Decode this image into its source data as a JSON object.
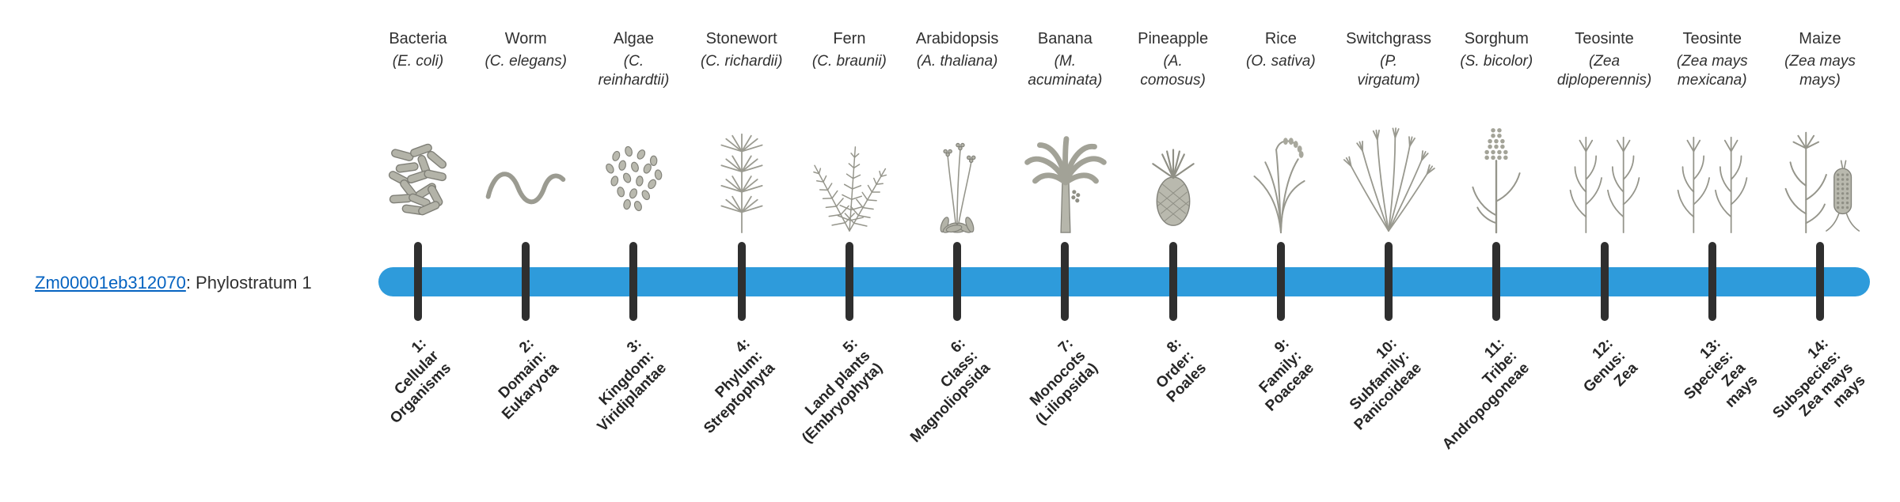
{
  "gene": {
    "id": "Zm00001eb312070",
    "phylostratum": ": Phylostratum 1"
  },
  "colors": {
    "bar": "#2E9BDB",
    "tick": "#2F2F2F",
    "link": "#0563C1",
    "text": "#303030",
    "label": "#262626"
  },
  "columns": [
    {
      "name": "Bacteria",
      "latin": "(E. coli)",
      "icon": "bacteria-icon",
      "stratum": [
        "1:",
        "Cellular",
        "Organisms"
      ]
    },
    {
      "name": "Worm",
      "latin": "(C. elegans)",
      "icon": "worm-icon",
      "stratum": [
        "2:",
        "Domain:",
        "Eukaryota"
      ]
    },
    {
      "name": "Algae",
      "latin": [
        "(C.",
        "reinhardtii)"
      ],
      "icon": "algae-icon",
      "stratum": [
        "3:",
        "Kingdom:",
        "Viridiplantae"
      ]
    },
    {
      "name": "Stonewort",
      "latin": "(C. richardii)",
      "icon": "stonewort-icon",
      "stratum": [
        "4:",
        "Phylum:",
        "Streptophyta"
      ]
    },
    {
      "name": "Fern",
      "latin": "(C. braunii)",
      "icon": "fern-icon",
      "stratum": [
        "5:",
        "Land plants",
        "(Embryophyta)"
      ]
    },
    {
      "name": "Arabidopsis",
      "latin": "(A. thaliana)",
      "icon": "arabidopsis-icon",
      "stratum": [
        "6:",
        "Class:",
        "Magnoliopsida"
      ]
    },
    {
      "name": "Banana",
      "latin": [
        "(M.",
        "acuminata)"
      ],
      "icon": "banana-plant-icon",
      "stratum": [
        "7:",
        "Monocots",
        "(Liliopsida)"
      ]
    },
    {
      "name": "Pineapple",
      "latin": [
        "(A.",
        "comosus)"
      ],
      "icon": "pineapple-icon",
      "stratum": [
        "8:",
        "Order:",
        "Poales"
      ]
    },
    {
      "name": "Rice",
      "latin": "(O. sativa)",
      "icon": "rice-plant-icon",
      "stratum": [
        "9:",
        "Family:",
        "Poaceae"
      ]
    },
    {
      "name": "Switchgrass",
      "latin": [
        "(P.",
        "virgatum)"
      ],
      "icon": "switchgrass-icon",
      "stratum": [
        "10:",
        "Subfamily:",
        "Panicoideae"
      ]
    },
    {
      "name": "Sorghum",
      "latin": "(S. bicolor)",
      "icon": "sorghum-icon",
      "stratum": [
        "11:",
        "Tribe:",
        "Andropogoneae"
      ]
    },
    {
      "name": "Teosinte",
      "latin": [
        "(Zea",
        "diploperennis)"
      ],
      "icon": "teosinte-icon",
      "stratum": [
        "12:",
        "Genus:",
        "Zea"
      ]
    },
    {
      "name": "Teosinte",
      "latin": [
        "(Zea mays",
        "mexicana)"
      ],
      "icon": "teosinte-icon",
      "stratum": [
        "13:",
        "Species:",
        "Zea",
        "mays"
      ]
    },
    {
      "name": "Maize",
      "latin": [
        "(Zea mays",
        "mays)"
      ],
      "icon": "maize-icon",
      "stratum": [
        "14:",
        "Subspecies:",
        "Zea mays",
        "mays"
      ]
    }
  ]
}
